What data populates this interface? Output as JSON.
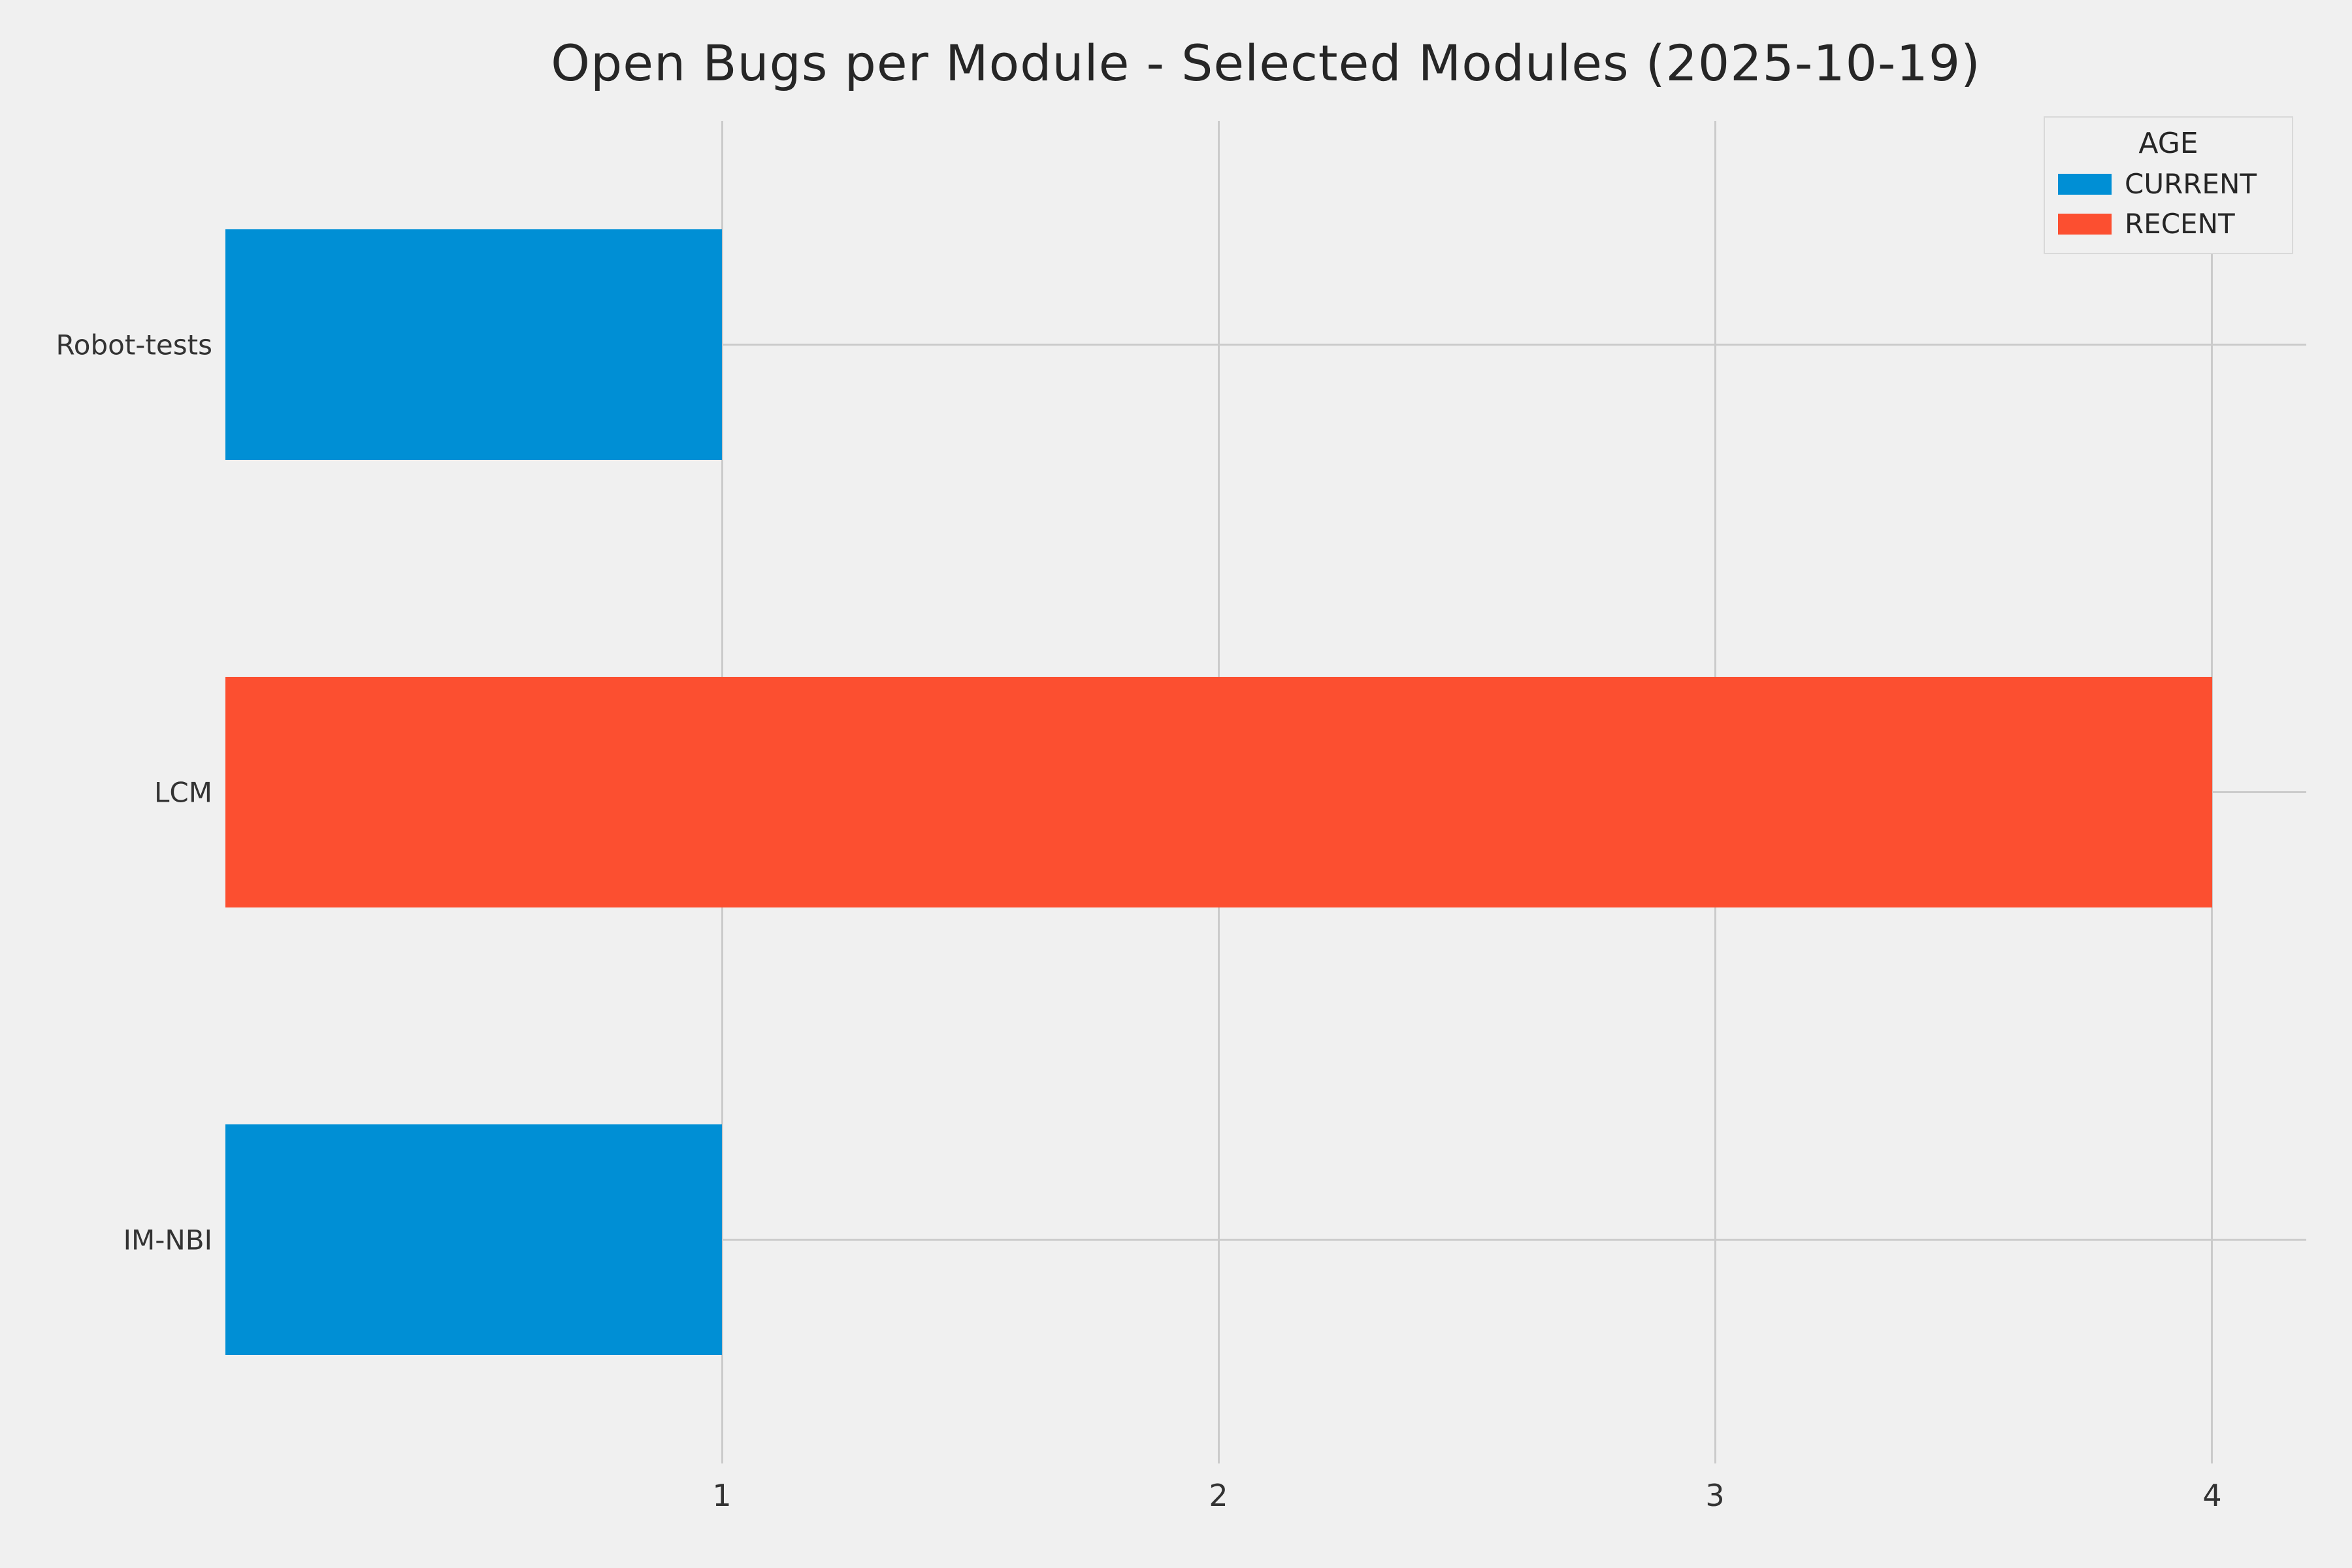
{
  "chart_data": {
    "type": "bar",
    "orientation": "horizontal",
    "title": "Open Bugs per Module - Selected Modules (2025-10-19)",
    "categories": [
      "Robot-tests",
      "LCM",
      "IM-NBI"
    ],
    "values": [
      1,
      4,
      1
    ],
    "bar_series": [
      "CURRENT",
      "RECENT",
      "CURRENT"
    ],
    "xlabel": "",
    "ylabel": "",
    "xlim": [
      0,
      4.19
    ],
    "xticks": [
      "1",
      "2",
      "3",
      "4"
    ],
    "grid": true,
    "legend": {
      "title": "AGE",
      "position": "upper-right",
      "entries": [
        {
          "label": "CURRENT",
          "color": "#008fd5"
        },
        {
          "label": "RECENT",
          "color": "#fc4f30"
        }
      ]
    },
    "colors": {
      "background": "#f0f0f0",
      "grid": "#cbcbcb",
      "text": "#262626"
    }
  }
}
